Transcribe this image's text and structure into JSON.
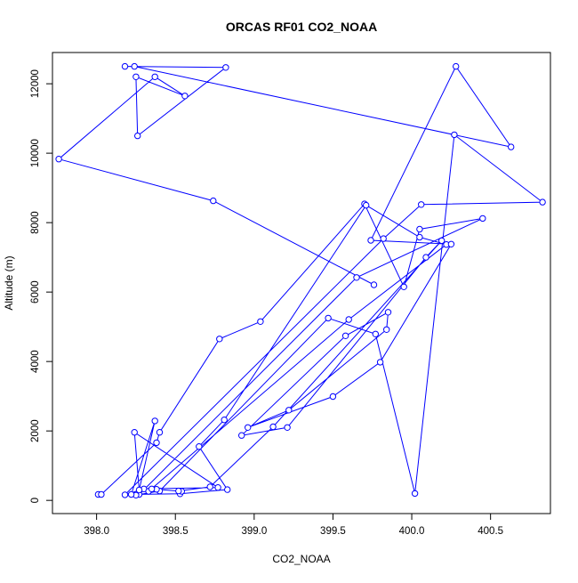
{
  "chart_data": {
    "type": "line",
    "title": "ORCAS RF01 CO2_NOAA",
    "xlabel": "CO2_NOAA",
    "ylabel": "Altitude (m)",
    "xlim": [
      397.72,
      400.88
    ],
    "ylim": [
      -380,
      12900
    ],
    "x_ticks": [
      398.0,
      398.5,
      399.0,
      399.5,
      400.0,
      400.5
    ],
    "x_tick_labels": [
      "398.0",
      "398.5",
      "399.0",
      "399.5",
      "400.0",
      "400.5"
    ],
    "y_ticks": [
      0,
      2000,
      4000,
      6000,
      8000,
      10000,
      12000
    ],
    "y_tick_labels": [
      "0",
      "2000",
      "4000",
      "6000",
      "8000",
      "10000",
      "12000"
    ],
    "grid": false,
    "legend": "none",
    "series": [
      {
        "color": "#0000ff",
        "marker": "open-circle",
        "x": [
          398.01,
          398.03,
          398.38,
          398.4,
          398.78,
          399.04,
          399.7,
          399.95,
          400.05,
          400.45,
          399.65,
          398.27,
          398.25,
          398.4,
          399.47,
          399.77,
          400.02,
          400.27,
          400.83,
          400.06,
          399.82,
          398.18,
          398.3,
          398.77,
          398.24,
          398.27,
          398.37,
          398.22,
          398.53,
          398.83,
          398.65,
          398.81,
          399.71,
          400.05,
          400.22,
          399.6,
          398.33,
          398.38,
          398.35,
          398.54,
          398.52,
          398.72,
          399.12,
          400.19,
          400.09,
          399.21,
          398.92,
          399.58,
          399.85,
          399.84,
          399.22,
          398.96,
          399.5,
          399.8,
          400.25,
          399.74,
          400.28,
          400.63,
          398.24,
          398.18,
          398.82,
          398.26,
          398.25,
          398.56,
          398.37,
          397.76,
          398.74,
          399.76
        ],
        "y": [
          170,
          170,
          1660,
          1960,
          4650,
          5150,
          8540,
          6150,
          7810,
          8120,
          6420,
          170,
          150,
          270,
          5250,
          4790,
          200,
          10530,
          8590,
          8520,
          7540,
          160,
          330,
          370,
          1960,
          300,
          2290,
          170,
          190,
          310,
          1550,
          2320,
          8500,
          7580,
          7370,
          5210,
          260,
          320,
          330,
          260,
          270,
          390,
          2120,
          7480,
          7000,
          2100,
          1870,
          4740,
          5420,
          4920,
          2600,
          2100,
          2990,
          3980,
          7380,
          7490,
          12500,
          10180,
          12500,
          12500,
          12470,
          10500,
          12200,
          11650,
          12200,
          9830,
          8630,
          6210
        ]
      }
    ]
  }
}
